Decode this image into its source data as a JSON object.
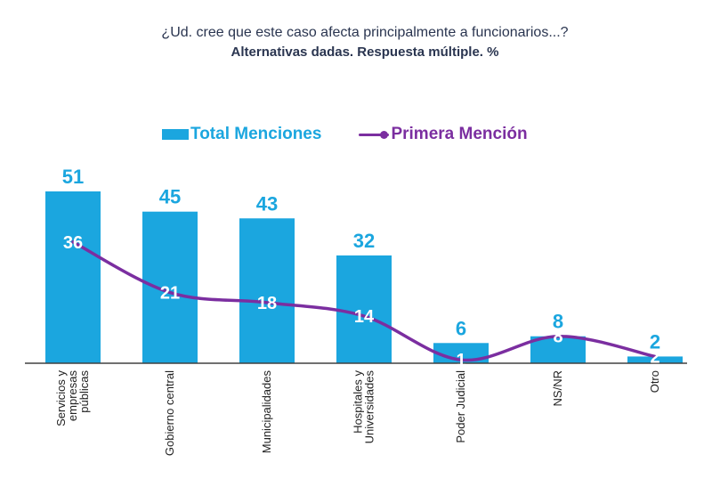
{
  "header": {
    "title": "¿Ud. cree que este caso afecta principalmente a funcionarios...?",
    "subtitle": "Alternativas dadas. Respuesta múltiple. %"
  },
  "colors": {
    "bar": "#1ba6df",
    "line": "#7b2ea0",
    "inner_label": "#ffffff",
    "axis": "#404040",
    "text": "#2a3550"
  },
  "chart_data": {
    "type": "bar",
    "title": "¿Ud. cree que este caso afecta principalmente a funcionarios...?",
    "subtitle": "Alternativas dadas. Respuesta múltiple. %",
    "categories": [
      [
        "Servicios y",
        "empresas",
        "públicas"
      ],
      [
        "Gobierno central"
      ],
      [
        "Municipalidades"
      ],
      [
        "Hospitales y",
        "Universidades"
      ],
      [
        "Poder Judicial"
      ],
      [
        "NS/NR"
      ],
      [
        "Otro"
      ]
    ],
    "series": [
      {
        "name": "Total Menciones",
        "type": "bar",
        "values": [
          51,
          45,
          43,
          32,
          6,
          8,
          2
        ]
      },
      {
        "name": "Primera Mención",
        "type": "line",
        "values": [
          36,
          21,
          18,
          14,
          1,
          8,
          2
        ]
      }
    ],
    "ylim": [
      0,
      55
    ],
    "grid": false,
    "legend_position": "top-center"
  }
}
